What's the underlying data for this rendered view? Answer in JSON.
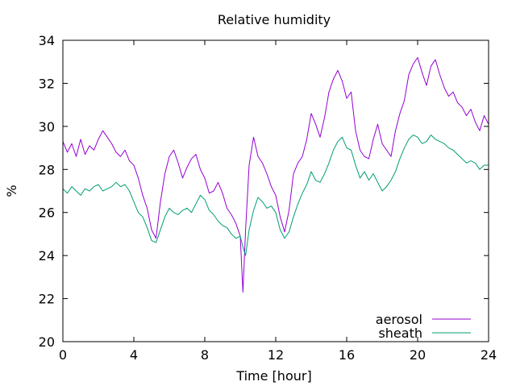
{
  "chart_data": {
    "type": "line",
    "title": "Relative humidity",
    "xlabel": "Time [hour]",
    "ylabel": "%",
    "xlim": [
      0,
      24
    ],
    "ylim": [
      20,
      34
    ],
    "xticks": [
      0,
      4,
      8,
      12,
      16,
      20,
      24
    ],
    "yticks": [
      20,
      22,
      24,
      26,
      28,
      30,
      32,
      34
    ],
    "grid": false,
    "legend_position": "bottom-right",
    "series": [
      {
        "name": "aerosol",
        "color": "#9400d3",
        "x": [
          0,
          0.25,
          0.5,
          0.75,
          1,
          1.25,
          1.5,
          1.75,
          2,
          2.25,
          2.5,
          2.75,
          3,
          3.25,
          3.5,
          3.75,
          4,
          4.25,
          4.5,
          4.75,
          5,
          5.25,
          5.5,
          5.75,
          6,
          6.25,
          6.5,
          6.75,
          7,
          7.25,
          7.5,
          7.75,
          8,
          8.25,
          8.5,
          8.75,
          9,
          9.25,
          9.5,
          9.75,
          10,
          10.15,
          10.3,
          10.5,
          10.75,
          11,
          11.25,
          11.5,
          11.75,
          12,
          12.25,
          12.5,
          12.75,
          13,
          13.25,
          13.5,
          13.75,
          14,
          14.25,
          14.5,
          14.75,
          15,
          15.25,
          15.5,
          15.75,
          16,
          16.25,
          16.5,
          16.75,
          17,
          17.25,
          17.5,
          17.75,
          18,
          18.25,
          18.5,
          18.75,
          19,
          19.25,
          19.5,
          19.75,
          20,
          20.25,
          20.5,
          20.75,
          21,
          21.25,
          21.5,
          21.75,
          22,
          22.25,
          22.5,
          22.75,
          23,
          23.25,
          23.5,
          23.75,
          24
        ],
        "values": [
          29.3,
          28.8,
          29.2,
          28.6,
          29.4,
          28.7,
          29.1,
          28.9,
          29.4,
          29.8,
          29.5,
          29.2,
          28.8,
          28.6,
          28.9,
          28.4,
          28.2,
          27.6,
          26.8,
          26.2,
          25.2,
          24.8,
          26.5,
          27.8,
          28.6,
          28.9,
          28.3,
          27.6,
          28.1,
          28.5,
          28.7,
          28.0,
          27.6,
          26.9,
          27.0,
          27.4,
          26.9,
          26.2,
          25.9,
          25.5,
          24.9,
          22.3,
          25.2,
          28.2,
          29.5,
          28.6,
          28.3,
          27.8,
          27.2,
          26.8,
          25.8,
          25.1,
          26.1,
          27.8,
          28.3,
          28.6,
          29.4,
          30.6,
          30.1,
          29.5,
          30.4,
          31.6,
          32.2,
          32.6,
          32.1,
          31.3,
          31.6,
          29.8,
          28.9,
          28.6,
          28.5,
          29.4,
          30.1,
          29.2,
          28.9,
          28.6,
          29.8,
          30.6,
          31.2,
          32.4,
          32.9,
          33.2,
          32.5,
          31.9,
          32.8,
          33.1,
          32.4,
          31.8,
          31.4,
          31.6,
          31.1,
          30.9,
          30.5,
          30.8,
          30.2,
          29.8,
          30.5,
          30.1
        ]
      },
      {
        "name": "sheath",
        "color": "#009e73",
        "x": [
          0,
          0.25,
          0.5,
          0.75,
          1,
          1.25,
          1.5,
          1.75,
          2,
          2.25,
          2.5,
          2.75,
          3,
          3.25,
          3.5,
          3.75,
          4,
          4.25,
          4.5,
          4.75,
          5,
          5.25,
          5.5,
          5.75,
          6,
          6.25,
          6.5,
          6.75,
          7,
          7.25,
          7.5,
          7.75,
          8,
          8.25,
          8.5,
          8.75,
          9,
          9.25,
          9.5,
          9.75,
          10,
          10.15,
          10.3,
          10.5,
          10.75,
          11,
          11.25,
          11.5,
          11.75,
          12,
          12.25,
          12.5,
          12.75,
          13,
          13.25,
          13.5,
          13.75,
          14,
          14.25,
          14.5,
          14.75,
          15,
          15.25,
          15.5,
          15.75,
          16,
          16.25,
          16.5,
          16.75,
          17,
          17.25,
          17.5,
          17.75,
          18,
          18.25,
          18.5,
          18.75,
          19,
          19.25,
          19.5,
          19.75,
          20,
          20.25,
          20.5,
          20.75,
          21,
          21.25,
          21.5,
          21.75,
          22,
          22.25,
          22.5,
          22.75,
          23,
          23.25,
          23.5,
          23.75,
          24
        ],
        "values": [
          27.1,
          26.9,
          27.2,
          27.0,
          26.8,
          27.1,
          27.0,
          27.2,
          27.3,
          27.0,
          27.1,
          27.2,
          27.4,
          27.2,
          27.3,
          27.0,
          26.5,
          26.0,
          25.8,
          25.3,
          24.7,
          24.6,
          25.2,
          25.8,
          26.2,
          26.0,
          25.9,
          26.1,
          26.2,
          26.0,
          26.4,
          26.8,
          26.6,
          26.1,
          25.9,
          25.6,
          25.4,
          25.3,
          25.0,
          24.8,
          24.9,
          24.4,
          24.0,
          25.2,
          26.1,
          26.7,
          26.5,
          26.2,
          26.3,
          26.0,
          25.2,
          24.8,
          25.1,
          25.8,
          26.4,
          26.9,
          27.3,
          27.9,
          27.5,
          27.4,
          27.8,
          28.3,
          28.9,
          29.3,
          29.5,
          29.0,
          28.9,
          28.2,
          27.6,
          27.9,
          27.5,
          27.8,
          27.4,
          27.0,
          27.2,
          27.5,
          27.9,
          28.5,
          29.0,
          29.4,
          29.6,
          29.5,
          29.2,
          29.3,
          29.6,
          29.4,
          29.3,
          29.2,
          29.0,
          28.9,
          28.7,
          28.5,
          28.3,
          28.4,
          28.3,
          28.0,
          28.2,
          28.2
        ]
      }
    ]
  }
}
